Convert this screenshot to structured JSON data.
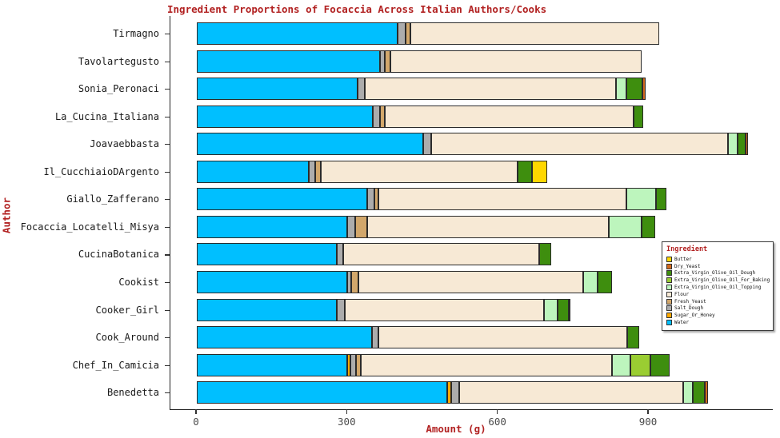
{
  "title": "Ingredient Proportions of Focaccia Across Italian Authors/Cooks",
  "x_axis": {
    "label": "Amount (g)",
    "ticks": [
      "0",
      "300",
      "600",
      "900"
    ],
    "tick_values": [
      0,
      300,
      600,
      900
    ]
  },
  "y_axis": {
    "label": "Author"
  },
  "legend": {
    "title": "Ingredient",
    "items": [
      {
        "label": "Butter",
        "color": "#FFD700"
      },
      {
        "label": "Dry_Yeast",
        "color": "#D2691E"
      },
      {
        "label": "Extra_Virgin_Olive_Oil_Dough",
        "color": "#3E8E0E"
      },
      {
        "label": "Extra_Virgin_Olive_Oil_For_Baking",
        "color": "#9ACD32"
      },
      {
        "label": "Extra_Virgin_Olive_Oil_Topping",
        "color": "#BDF5BD"
      },
      {
        "label": "Flour",
        "color": "#F7E9D5"
      },
      {
        "label": "Fresh_Yeast",
        "color": "#D2A76B"
      },
      {
        "label": "Salt_Dough",
        "color": "#ACACAC"
      },
      {
        "label": "Sugar_Or_Honey",
        "color": "#FFA800"
      },
      {
        "label": "Water",
        "color": "#00BFFF"
      }
    ]
  },
  "chart_data": {
    "type": "bar",
    "orientation": "horizontal",
    "stacked": true,
    "title": "Ingredient Proportions of Focaccia Across Italian Authors/Cooks",
    "xlabel": "Amount (g)",
    "ylabel": "Author",
    "xlim": [
      -55,
      1160
    ],
    "x_ticks": [
      0,
      300,
      600,
      900
    ],
    "grid": false,
    "legend_position": "inset-right",
    "categories": [
      "Tirmagno",
      "Tavolartegusto",
      "Sonia_Peronaci",
      "La_Cucina_Italiana",
      "Joavaebbasta",
      "Il_CucchiaioDArgento",
      "Giallo_Zafferano",
      "Focaccia_Locatelli_Misya",
      "CucinaBotanica",
      "Cookist",
      "Cooker_Girl",
      "Cook_Around",
      "Chef_In_Camicia",
      "Benedetta"
    ],
    "stack_order": [
      "Water",
      "Sugar_Or_Honey",
      "Salt_Dough",
      "Fresh_Yeast",
      "Flour",
      "Extra_Virgin_Olive_Oil_Topping",
      "Extra_Virgin_Olive_Oil_For_Baking",
      "Extra_Virgin_Olive_Oil_Dough",
      "Dry_Yeast",
      "Butter"
    ],
    "series": [
      {
        "name": "Water",
        "color": "#00BFFF",
        "values": [
          400,
          365,
          320,
          350,
          450,
          223,
          340,
          300,
          279,
          300,
          279,
          349,
          300,
          499
        ]
      },
      {
        "name": "Sugar_Or_Honey",
        "color": "#FFA800",
        "values": [
          0,
          0,
          0,
          0,
          0,
          0,
          0,
          0,
          0,
          0,
          0,
          0,
          6,
          8
        ]
      },
      {
        "name": "Salt_Dough",
        "color": "#ACACAC",
        "values": [
          15,
          10,
          15,
          14,
          16,
          13,
          13,
          16,
          13,
          8,
          16,
          13,
          11,
          16
        ]
      },
      {
        "name": "Fresh_Yeast",
        "color": "#D2A76B",
        "values": [
          10,
          10,
          0,
          10,
          0,
          11,
          8,
          23,
          0,
          13,
          0,
          0,
          10,
          0
        ]
      },
      {
        "name": "Flour",
        "color": "#F7E9D5",
        "values": [
          495,
          500,
          500,
          495,
          592,
          392,
          494,
          481,
          390,
          448,
          397,
          495,
          499,
          446
        ]
      },
      {
        "name": "Extra_Virgin_Olive_Oil_Topping",
        "color": "#BDF5BD",
        "values": [
          0,
          0,
          20,
          0,
          19,
          0,
          59,
          66,
          0,
          29,
          27,
          0,
          37,
          19
        ]
      },
      {
        "name": "Extra_Virgin_Olive_Oil_For_Baking",
        "color": "#9ACD32",
        "values": [
          0,
          0,
          0,
          0,
          0,
          0,
          0,
          0,
          0,
          0,
          0,
          0,
          40,
          0
        ]
      },
      {
        "name": "Extra_Virgin_Olive_Oil_Dough",
        "color": "#3E8E0E",
        "values": [
          0,
          0,
          33,
          20,
          16,
          28,
          21,
          27,
          24,
          29,
          21,
          24,
          38,
          24
        ]
      },
      {
        "name": "Dry_Yeast",
        "color": "#D2691E",
        "values": [
          0,
          0,
          6,
          0,
          5,
          0,
          0,
          0,
          0,
          0,
          4,
          0,
          0,
          6
        ]
      },
      {
        "name": "Butter",
        "color": "#FFD700",
        "values": [
          0,
          0,
          0,
          0,
          0,
          30,
          0,
          0,
          0,
          0,
          0,
          0,
          0,
          0
        ]
      }
    ]
  }
}
